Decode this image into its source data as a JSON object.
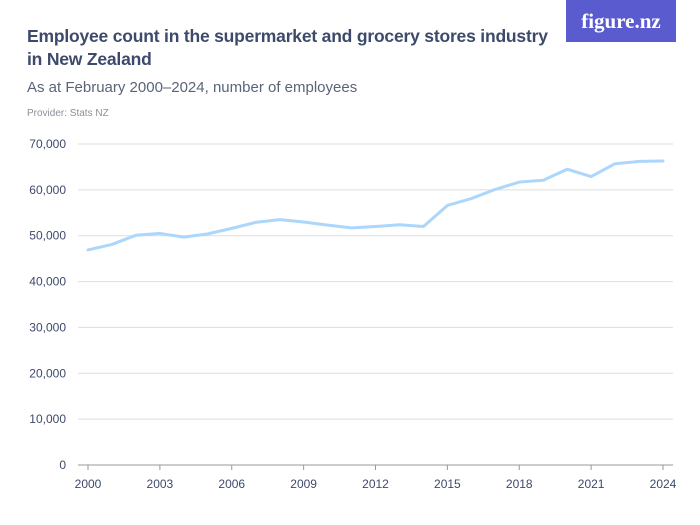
{
  "title": "Employee count in the supermarket and grocery stores industry in New Zealand",
  "subtitle": "As at February 2000–2024, number of employees",
  "provider": "Provider: Stats NZ",
  "logo": "figure.nz",
  "colors": {
    "line": "#acd6fb",
    "logo_bg": "#5b5bd0",
    "grid": "#dddddd",
    "text": "#3d4a6b"
  },
  "chart_data": {
    "type": "line",
    "title": "Employee count in the supermarket and grocery stores industry in New Zealand",
    "xlabel": "",
    "ylabel": "",
    "x": [
      2000,
      2001,
      2002,
      2003,
      2004,
      2005,
      2006,
      2007,
      2008,
      2009,
      2010,
      2011,
      2012,
      2013,
      2014,
      2015,
      2016,
      2017,
      2018,
      2019,
      2020,
      2021,
      2022,
      2023,
      2024
    ],
    "values": [
      46900,
      48100,
      50100,
      50500,
      49700,
      50400,
      51600,
      52900,
      53500,
      53000,
      52300,
      51700,
      52000,
      52400,
      52000,
      56600,
      58100,
      60100,
      61700,
      62100,
      64500,
      62900,
      65700,
      66200,
      66300
    ],
    "xlim": [
      2000,
      2024
    ],
    "ylim": [
      0,
      70000
    ],
    "x_ticks": [
      "2000",
      "2003",
      "2006",
      "2009",
      "2012",
      "2015",
      "2018",
      "2021",
      "2024"
    ],
    "y_ticks": [
      "0",
      "10,000",
      "20,000",
      "30,000",
      "40,000",
      "50,000",
      "60,000",
      "70,000"
    ],
    "grid": true,
    "legend": "none"
  }
}
